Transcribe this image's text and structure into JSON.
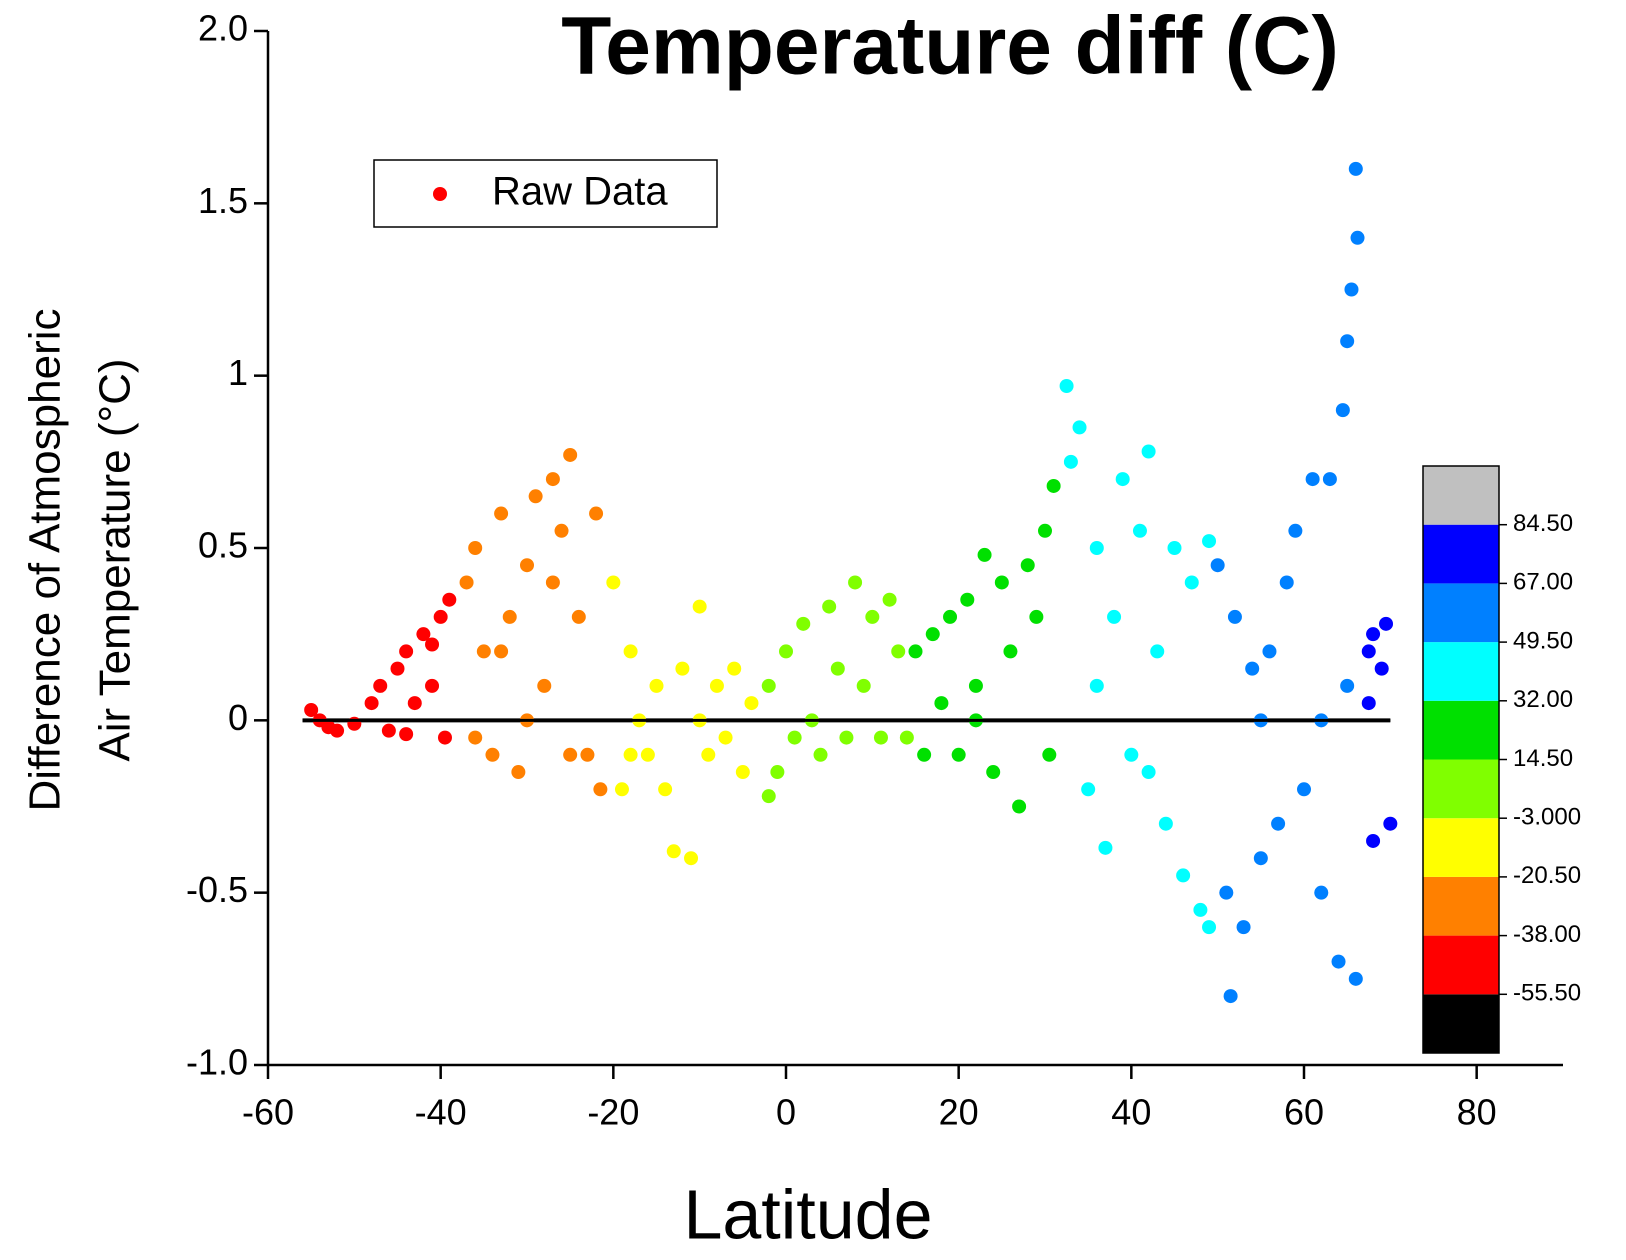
{
  "chart_data": {
    "type": "scatter",
    "title": "Temperature diff (C)",
    "x_label": "Latitude",
    "y_label": [
      "Difference of Atmospheric",
      "Air Temperature (°C)"
    ],
    "xlim": [
      -60,
      90
    ],
    "ylim": [
      -1,
      2
    ],
    "xticks": [
      -60,
      -40,
      -20,
      0,
      20,
      40,
      60,
      80
    ],
    "yticks": [
      {
        "value": 2,
        "label": "2.0"
      },
      1.5,
      1,
      0.5,
      0,
      -0.5,
      {
        "value": -1,
        "label": "-1.0"
      }
    ],
    "legend": "upper left",
    "series": [
      {
        "name": "Raw Data",
        "color": "#ff0000",
        "x": [
          -55,
          -54,
          -53,
          -52,
          -50,
          -48,
          -47,
          -46,
          -45,
          -44,
          -43,
          -42,
          -41,
          -40,
          -39,
          -39.5,
          -41,
          -44,
          -37,
          -36,
          -35,
          -34,
          -33,
          -32,
          -31,
          -30,
          -29,
          -28,
          -27,
          -26,
          -25,
          -24,
          -23,
          -22,
          -21.5,
          -36,
          -30,
          -25,
          -33,
          -27,
          -20,
          -19,
          -18,
          -17,
          -16,
          -15,
          -14,
          -13,
          -12,
          -11,
          -10,
          -9,
          -8,
          -7,
          -6,
          -5,
          -4,
          -18,
          -10,
          -2,
          -1,
          0,
          1,
          2,
          3,
          4,
          5,
          6,
          7,
          8,
          9,
          10,
          11,
          12,
          13,
          14,
          -2,
          15,
          16,
          17,
          18,
          19,
          20,
          21,
          22,
          23,
          24,
          25,
          26,
          27,
          28,
          29,
          30,
          31,
          30.5,
          22,
          32.5,
          33,
          34,
          35,
          36,
          37,
          38,
          39,
          40,
          41,
          42,
          43,
          44,
          45,
          46,
          47,
          48,
          49,
          49,
          36,
          42,
          50,
          51,
          51.5,
          52,
          53,
          54,
          55,
          56,
          57,
          58,
          59,
          60,
          61,
          62,
          63,
          64,
          64.5,
          65,
          65.5,
          66,
          66.2,
          66,
          65,
          62,
          55,
          67.5,
          68,
          69,
          69.5,
          70,
          68,
          67.5
        ],
        "values": [
          0.03,
          0,
          -0.02,
          -0.03,
          -0.01,
          0.05,
          0.1,
          -0.03,
          0.15,
          0.2,
          0.05,
          0.25,
          0.22,
          0.3,
          0.35,
          -0.05,
          0.1,
          -0.04,
          0.4,
          0.5,
          0.2,
          -0.1,
          0.6,
          0.3,
          -0.15,
          0.45,
          0.65,
          0.1,
          0.7,
          0.55,
          0.77,
          0.3,
          -0.1,
          0.6,
          -0.2,
          -0.05,
          0,
          -0.1,
          0.2,
          0.4,
          0.4,
          -0.2,
          0.2,
          0,
          -0.1,
          0.1,
          -0.2,
          -0.38,
          0.15,
          -0.4,
          0.33,
          -0.1,
          0.1,
          -0.05,
          0.15,
          -0.15,
          0.05,
          -0.1,
          0,
          0.1,
          -0.15,
          0.2,
          -0.05,
          0.28,
          0,
          -0.1,
          0.33,
          0.15,
          -0.05,
          0.4,
          0.1,
          0.3,
          -0.05,
          0.35,
          0.2,
          -0.05,
          -0.22,
          0.2,
          -0.1,
          0.25,
          0.05,
          0.3,
          -0.1,
          0.35,
          0.1,
          0.48,
          -0.15,
          0.4,
          0.2,
          -0.25,
          0.45,
          0.3,
          0.55,
          0.68,
          -0.1,
          0,
          0.97,
          0.75,
          0.85,
          -0.2,
          0.5,
          -0.37,
          0.3,
          0.7,
          -0.1,
          0.55,
          0.78,
          0.2,
          -0.3,
          0.5,
          -0.45,
          0.4,
          -0.55,
          0.52,
          -0.6,
          0.1,
          -0.15,
          0.45,
          -0.5,
          -0.8,
          0.3,
          -0.6,
          0.15,
          -0.4,
          0.2,
          -0.3,
          0.4,
          0.55,
          -0.2,
          0.7,
          -0.5,
          0.7,
          -0.7,
          0.9,
          1.1,
          1.25,
          1.6,
          1.4,
          -0.75,
          0.1,
          0,
          0,
          0.2,
          0.25,
          0.15,
          0.28,
          -0.3,
          -0.35,
          0.05
        ]
      }
    ],
    "reference_line": {
      "y": 0,
      "x": [
        -56,
        70
      ],
      "color": "#000000"
    },
    "colorbar": {
      "levels": [
        {
          "value": -55.5,
          "label": "-55.50"
        },
        {
          "value": -38,
          "label": "-38.00"
        },
        {
          "value": -20.5,
          "label": "-20.50"
        },
        {
          "value": -3,
          "label": "-3.000"
        },
        {
          "value": 14.5,
          "label": "14.50"
        },
        {
          "value": 32,
          "label": "32.00"
        },
        {
          "value": 49.5,
          "label": "49.50"
        },
        {
          "value": 67,
          "label": "67.00"
        },
        {
          "value": 84.5,
          "label": "84.50"
        }
      ],
      "colors": [
        "#000000",
        "#ff0000",
        "#ff8000",
        "#ffff00",
        "#80ff00",
        "#00e000",
        "#00ffff",
        "#0080ff",
        "#0000ff",
        "#c0c0c0"
      ]
    }
  }
}
